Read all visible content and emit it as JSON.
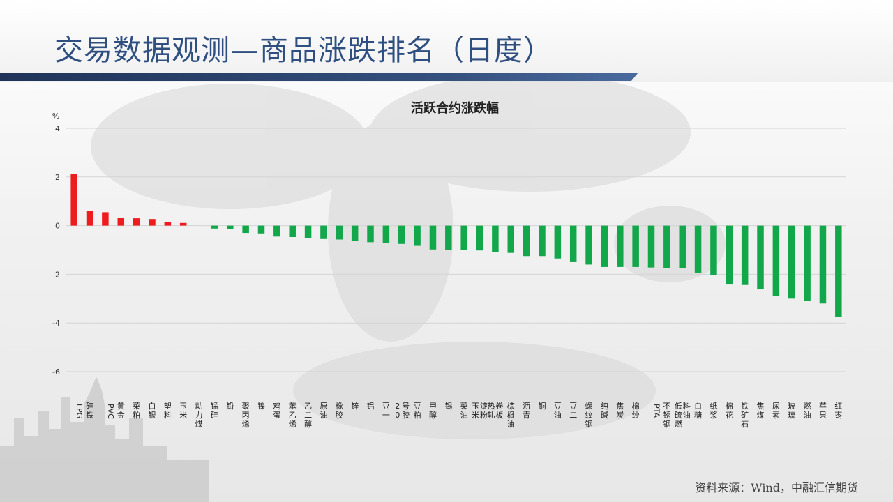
{
  "slide": {
    "title": "交易数据观测—商品涨跌排名（日度）",
    "source": "资料来源：Wind，中融汇信期货"
  },
  "colors": {
    "title": "#2f4f80",
    "band_dark": "#2b4068",
    "up": "#ee1c1c",
    "down": "#12a74a"
  },
  "chart_data": {
    "type": "bar",
    "title": "活跃合约涨跌幅",
    "ylabel": "%",
    "ylim": [
      -6,
      4
    ],
    "yticks": [
      4,
      2,
      0,
      -2,
      -4,
      -6
    ],
    "grid": true,
    "categories": [
      "LPG",
      "硅铁",
      "PVC",
      "黄金",
      "菜粕",
      "白银",
      "塑料",
      "玉米",
      "动力煤",
      "锰硅",
      "铅",
      "聚丙烯",
      "镍",
      "鸡蛋",
      "苯乙烯",
      "乙二醇",
      "原油",
      "橡胶",
      "锌",
      "铝",
      "豆一",
      "20号胶",
      "豆粕",
      "甲醇",
      "锡",
      "菜油",
      "玉米淀粉",
      "热轧卷板",
      "棕榈油",
      "沥青",
      "铜",
      "豆油",
      "豆二",
      "螺纹钢",
      "纯碱",
      "焦炭",
      "棉纱",
      "PTA",
      "不锈钢",
      "低硫燃料油",
      "白糖",
      "纸浆",
      "棉花",
      "铁矿石",
      "焦煤",
      "尿素",
      "玻璃",
      "燃油",
      "苹果",
      "红枣"
    ],
    "values": [
      2.12,
      0.6,
      0.55,
      0.32,
      0.3,
      0.27,
      0.14,
      0.11,
      0.0,
      -0.12,
      -0.15,
      -0.3,
      -0.32,
      -0.45,
      -0.47,
      -0.5,
      -0.55,
      -0.57,
      -0.63,
      -0.68,
      -0.7,
      -0.75,
      -0.83,
      -0.98,
      -1.0,
      -1.0,
      -1.02,
      -1.1,
      -1.12,
      -1.25,
      -1.25,
      -1.35,
      -1.5,
      -1.6,
      -1.7,
      -1.7,
      -1.7,
      -1.72,
      -1.73,
      -1.75,
      -1.93,
      -2.03,
      -2.42,
      -2.44,
      -2.62,
      -2.88,
      -3.0,
      -3.08,
      -3.2,
      -3.75
    ]
  }
}
